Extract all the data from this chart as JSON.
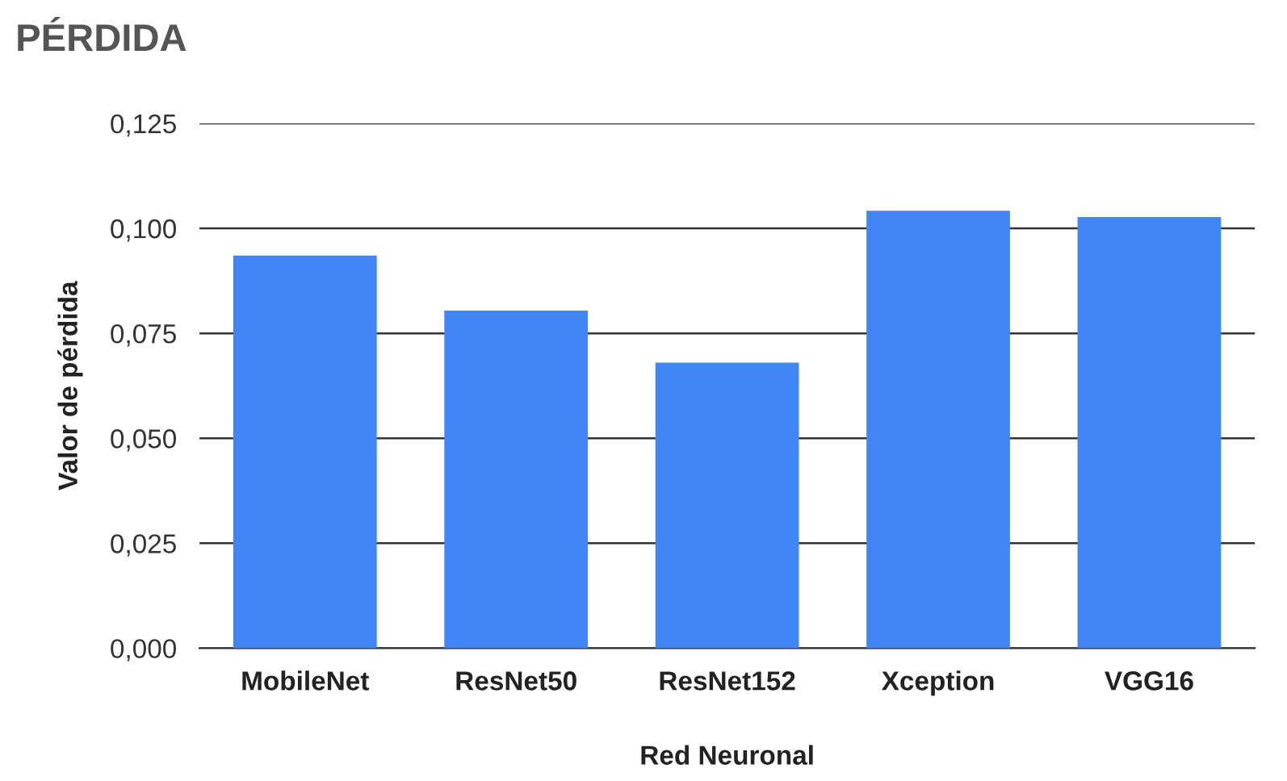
{
  "chart_data": {
    "type": "bar",
    "title": "PÉRDIDA",
    "xlabel": "Red Neuronal",
    "ylabel": "Valor de pérdida",
    "categories": [
      "MobileNet",
      "ResNet50",
      "ResNet152",
      "Xception",
      "VGG16"
    ],
    "values": [
      0.0935,
      0.0804,
      0.068,
      0.1042,
      0.1027
    ],
    "color": "#4285f4",
    "ylim": [
      0,
      0.125
    ],
    "yticks": [
      {
        "value": 0,
        "label": "0,000"
      },
      {
        "value": 0.025,
        "label": "0,025"
      },
      {
        "value": 0.05,
        "label": "0,050"
      },
      {
        "value": 0.075,
        "label": "0,075"
      },
      {
        "value": 0.1,
        "label": "0,100"
      },
      {
        "value": 0.125,
        "label": "0,125"
      }
    ],
    "grid": "y",
    "legend": false
  }
}
